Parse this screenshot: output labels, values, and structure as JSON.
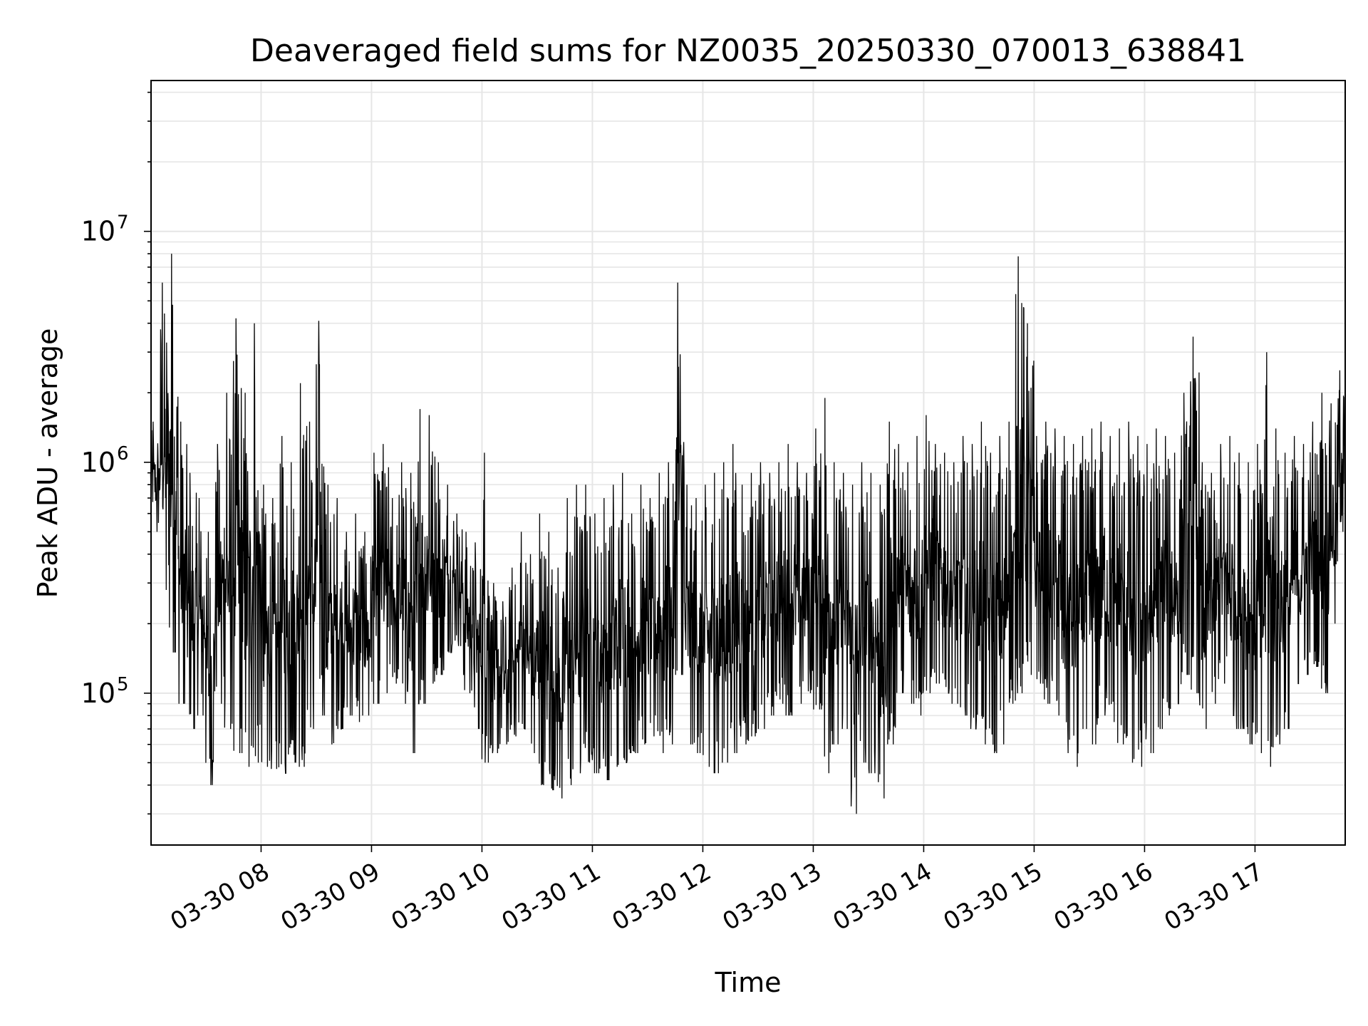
{
  "chart_data": {
    "type": "line",
    "title": "Deaveraged field sums for NZ0035_20250330_070013_638841",
    "xlabel": "Time",
    "ylabel": "Peak ADU - average",
    "y_scale": "log",
    "ylim": [
      22000,
      45000000
    ],
    "xlim": [
      "2025-03-30 07:00:13",
      "2025-03-30 17:49"
    ],
    "grid": true,
    "x_ticks": [
      "03-30 08",
      "03-30 09",
      "03-30 10",
      "03-30 11",
      "03-30 12",
      "03-30 13",
      "03-30 14",
      "03-30 15",
      "03-30 16",
      "03-30 17"
    ],
    "y_ticks": [
      {
        "base": "10",
        "exp": "5",
        "value": 100000
      },
      {
        "base": "10",
        "exp": "6",
        "value": 1000000
      },
      {
        "base": "10",
        "exp": "7",
        "value": 10000000
      }
    ],
    "series": [
      {
        "color": "#000000",
        "x": [
          "2025-03-30 07:00",
          "2025-03-30 07:05",
          "2025-03-30 07:10",
          "2025-03-30 07:15",
          "2025-03-30 07:20",
          "2025-03-30 07:25",
          "2025-03-30 07:30",
          "2025-03-30 07:35",
          "2025-03-30 07:40",
          "2025-03-30 07:45",
          "2025-03-30 07:50",
          "2025-03-30 07:55",
          "2025-03-30 08:00",
          "2025-03-30 08:05",
          "2025-03-30 08:10",
          "2025-03-30 08:15",
          "2025-03-30 08:20",
          "2025-03-30 08:25",
          "2025-03-30 08:30",
          "2025-03-30 08:35",
          "2025-03-30 08:40",
          "2025-03-30 08:45",
          "2025-03-30 08:50",
          "2025-03-30 08:55",
          "2025-03-30 09:00",
          "2025-03-30 09:05",
          "2025-03-30 09:10",
          "2025-03-30 09:15",
          "2025-03-30 09:20",
          "2025-03-30 09:25",
          "2025-03-30 09:30",
          "2025-03-30 09:35",
          "2025-03-30 09:40",
          "2025-03-30 09:45",
          "2025-03-30 09:50",
          "2025-03-30 09:55",
          "2025-03-30 10:00",
          "2025-03-30 10:05",
          "2025-03-30 10:10",
          "2025-03-30 10:15",
          "2025-03-30 10:20",
          "2025-03-30 10:25",
          "2025-03-30 10:30",
          "2025-03-30 10:35",
          "2025-03-30 10:40",
          "2025-03-30 10:45",
          "2025-03-30 10:50",
          "2025-03-30 10:55",
          "2025-03-30 11:00",
          "2025-03-30 11:05",
          "2025-03-30 11:10",
          "2025-03-30 11:15",
          "2025-03-30 11:20",
          "2025-03-30 11:25",
          "2025-03-30 11:30",
          "2025-03-30 11:35",
          "2025-03-30 11:40",
          "2025-03-30 11:45",
          "2025-03-30 11:50",
          "2025-03-30 11:55",
          "2025-03-30 12:00",
          "2025-03-30 12:05",
          "2025-03-30 12:10",
          "2025-03-30 12:15",
          "2025-03-30 12:20",
          "2025-03-30 12:25",
          "2025-03-30 12:30",
          "2025-03-30 12:35",
          "2025-03-30 12:40",
          "2025-03-30 12:45",
          "2025-03-30 12:50",
          "2025-03-30 12:55",
          "2025-03-30 13:00",
          "2025-03-30 13:05",
          "2025-03-30 13:10",
          "2025-03-30 13:15",
          "2025-03-30 13:20",
          "2025-03-30 13:25",
          "2025-03-30 13:30",
          "2025-03-30 13:35",
          "2025-03-30 13:40",
          "2025-03-30 13:45",
          "2025-03-30 13:50",
          "2025-03-30 13:55",
          "2025-03-30 14:00",
          "2025-03-30 14:05",
          "2025-03-30 14:10",
          "2025-03-30 14:15",
          "2025-03-30 14:20",
          "2025-03-30 14:25",
          "2025-03-30 14:30",
          "2025-03-30 14:35",
          "2025-03-30 14:40",
          "2025-03-30 14:45",
          "2025-03-30 14:50",
          "2025-03-30 14:55",
          "2025-03-30 15:00",
          "2025-03-30 15:05",
          "2025-03-30 15:10",
          "2025-03-30 15:15",
          "2025-03-30 15:20",
          "2025-03-30 15:25",
          "2025-03-30 15:30",
          "2025-03-30 15:35",
          "2025-03-30 15:40",
          "2025-03-30 15:45",
          "2025-03-30 15:50",
          "2025-03-30 15:55",
          "2025-03-30 16:00",
          "2025-03-30 16:05",
          "2025-03-30 16:10",
          "2025-03-30 16:15",
          "2025-03-30 16:20",
          "2025-03-30 16:25",
          "2025-03-30 16:30",
          "2025-03-30 16:35",
          "2025-03-30 16:40",
          "2025-03-30 16:45",
          "2025-03-30 16:50",
          "2025-03-30 16:55",
          "2025-03-30 17:00",
          "2025-03-30 17:05",
          "2025-03-30 17:10",
          "2025-03-30 17:15",
          "2025-03-30 17:20",
          "2025-03-30 17:25",
          "2025-03-30 17:30",
          "2025-03-30 17:35",
          "2025-03-30 17:40",
          "2025-03-30 17:45"
        ],
        "y_low": [
          500000,
          280000,
          150000,
          90000,
          70000,
          80000,
          40000,
          90000,
          70000,
          55000,
          48000,
          50000,
          48000,
          47000,
          45000,
          50000,
          48000,
          70000,
          80000,
          60000,
          70000,
          80000,
          75000,
          80000,
          90000,
          100000,
          110000,
          90000,
          55000,
          90000,
          110000,
          120000,
          150000,
          160000,
          100000,
          70000,
          50000,
          55000,
          60000,
          65000,
          70000,
          55000,
          40000,
          38000,
          35000,
          40000,
          45000,
          50000,
          45000,
          42000,
          48000,
          50000,
          55000,
          60000,
          65000,
          55000,
          60000,
          120000,
          60000,
          55000,
          48000,
          45000,
          50000,
          55000,
          60000,
          65000,
          70000,
          80000,
          90000,
          80000,
          90000,
          100000,
          85000,
          45000,
          60000,
          70000,
          30000,
          50000,
          45000,
          35000,
          60000,
          100000,
          90000,
          80000,
          100000,
          110000,
          100000,
          90000,
          80000,
          70000,
          60000,
          55000,
          60000,
          90000,
          100000,
          120000,
          110000,
          90000,
          80000,
          55000,
          48000,
          70000,
          60000,
          80000,
          75000,
          60000,
          50000,
          48000,
          55000,
          70000,
          80000,
          90000,
          120000,
          100000,
          70000,
          90000,
          110000,
          80000,
          70000,
          60000,
          55000,
          48000,
          60000,
          70000,
          110000,
          120000,
          130000,
          100000,
          200000,
          500000
        ],
        "y_high": [
          1500000,
          6000000,
          8000000,
          1500000,
          900000,
          700000,
          500000,
          1200000,
          2000000,
          4200000,
          2000000,
          4000000,
          800000,
          700000,
          1300000,
          1000000,
          2200000,
          1500000,
          4100000,
          800000,
          700000,
          500000,
          600000,
          500000,
          1100000,
          1200000,
          700000,
          1000000,
          900000,
          1700000,
          1600000,
          1000000,
          800000,
          600000,
          500000,
          450000,
          1100000,
          300000,
          250000,
          350000,
          500000,
          400000,
          600000,
          500000,
          350000,
          700000,
          800000,
          800000,
          600000,
          700000,
          800000,
          900000,
          600000,
          800000,
          700000,
          900000,
          1000000,
          6000000,
          800000,
          700000,
          800000,
          900000,
          1000000,
          1200000,
          800000,
          900000,
          1000000,
          900000,
          1000000,
          1200000,
          1000000,
          900000,
          1400000,
          1900000,
          1000000,
          900000,
          800000,
          1000000,
          900000,
          800000,
          1500000,
          1200000,
          1000000,
          1300000,
          1600000,
          1200000,
          1100000,
          1000000,
          1300000,
          1200000,
          1500000,
          1100000,
          1300000,
          1500000,
          7800000,
          4000000,
          1300000,
          1500000,
          1400000,
          1300000,
          1200000,
          1300000,
          1400000,
          1500000,
          1300000,
          1400000,
          1500000,
          1300000,
          1200000,
          1400000,
          1300000,
          1100000,
          2000000,
          3500000,
          1000000,
          900000,
          1200000,
          1300000,
          1100000,
          1000000,
          1200000,
          3000000,
          1400000,
          1100000,
          1300000,
          1200000,
          1500000,
          2000000,
          1800000,
          2500000
        ]
      }
    ]
  }
}
